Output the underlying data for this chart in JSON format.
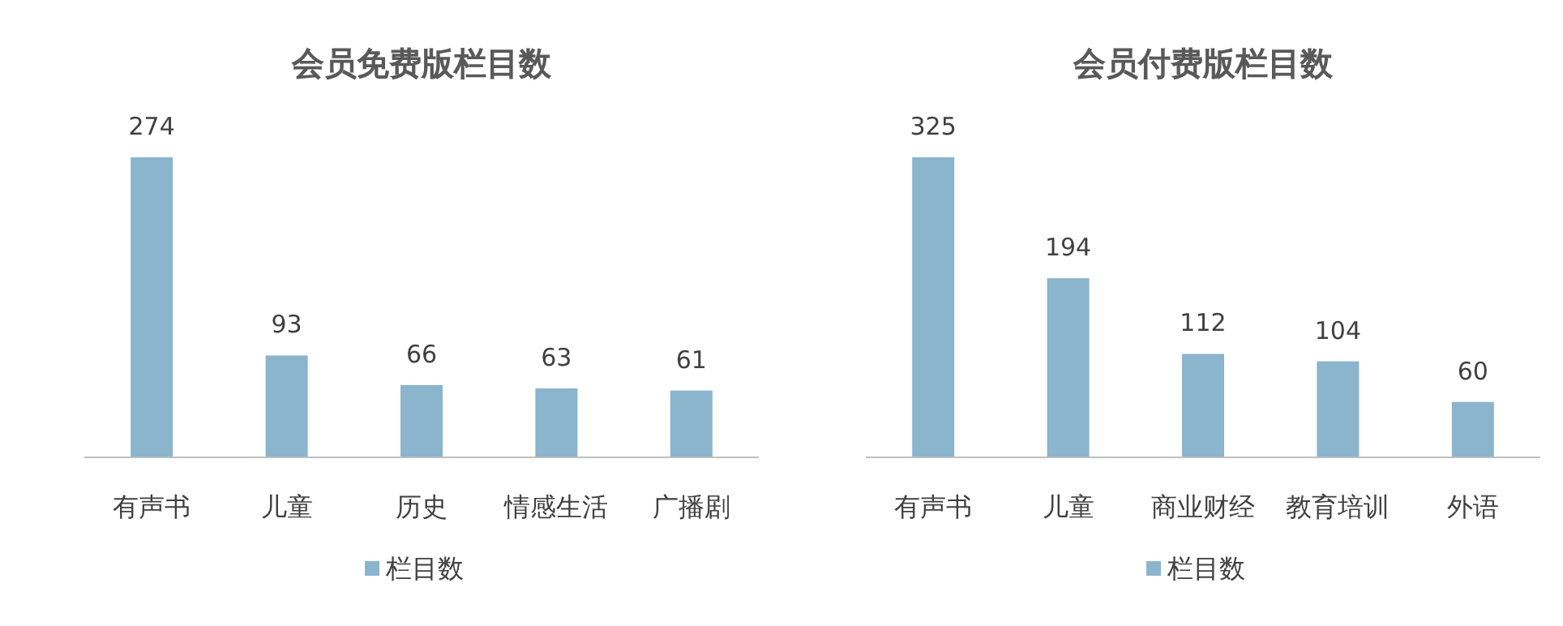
{
  "chart_data": [
    {
      "type": "bar",
      "title": "会员免费版栏目数",
      "categories": [
        "有声书",
        "儿童",
        "历史",
        "情感生活",
        "广播剧"
      ],
      "series": [
        {
          "name": "栏目数",
          "color": "#8bb4cd",
          "values": [
            274,
            93,
            66,
            63,
            61
          ]
        }
      ],
      "data_labels": true,
      "legend": "bottom"
    },
    {
      "type": "bar",
      "title": "会员付费版栏目数",
      "categories": [
        "有声书",
        "儿童",
        "商业财经",
        "教育培训",
        "外语"
      ],
      "series": [
        {
          "name": "栏目数",
          "color": "#8bb4cd",
          "values": [
            325,
            194,
            112,
            104,
            60
          ]
        }
      ],
      "data_labels": true,
      "legend": "bottom"
    }
  ]
}
